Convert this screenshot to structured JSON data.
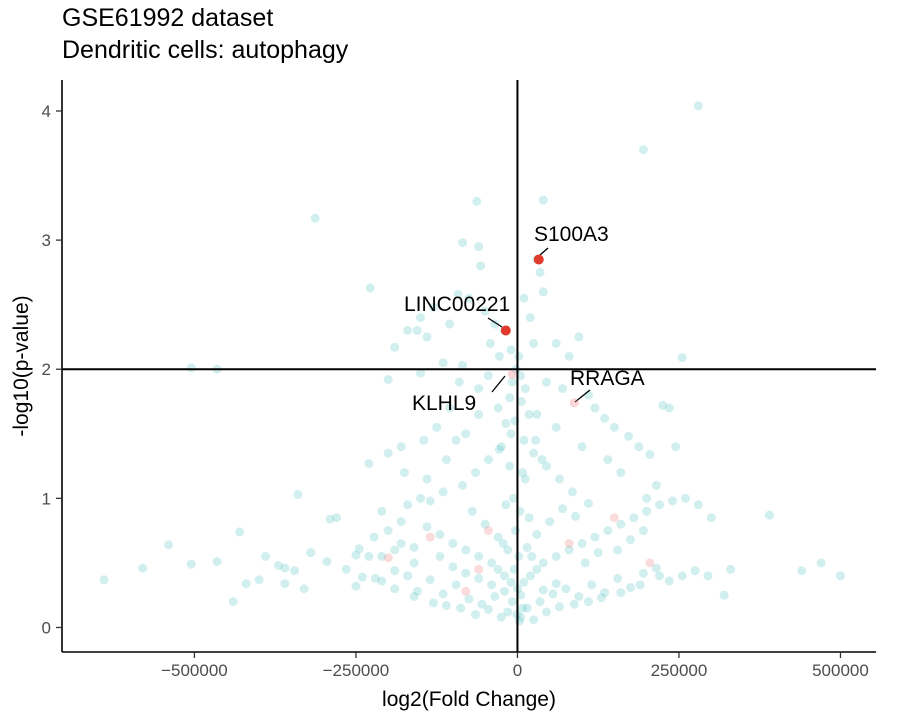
{
  "chart_data": {
    "type": "scatter",
    "title": "GSE61992 dataset",
    "subtitle": "Dendritic cells: autophagy",
    "xlabel": "log2(Fold Change)",
    "ylabel": "-log10(p-value)",
    "xlim": [
      -705000,
      555000
    ],
    "ylim": [
      -0.19,
      4.24
    ],
    "xticks": [
      -500000,
      -250000,
      0,
      250000,
      500000
    ],
    "xtick_labels": [
      "−500000",
      "−250000",
      "0",
      "250000",
      "500000"
    ],
    "yticks": [
      0,
      1,
      2,
      3,
      4
    ],
    "ytick_labels": [
      "0",
      "1",
      "2",
      "3",
      "4"
    ],
    "grid": false,
    "reference_lines": {
      "vertical_x": 0,
      "horizontal_y": 2
    },
    "colors": {
      "background": "#4dc0c0",
      "highlight": "#e03b2c",
      "faded_highlight": "#f08a8a"
    },
    "background_points": [
      [
        280000,
        4.04
      ],
      [
        195000,
        3.7
      ],
      [
        -313000,
        3.17
      ],
      [
        -63000,
        3.3
      ],
      [
        -85000,
        2.98
      ],
      [
        -60000,
        2.95
      ],
      [
        -57000,
        2.8
      ],
      [
        -228000,
        2.63
      ],
      [
        -92000,
        2.58
      ],
      [
        -75000,
        2.55
      ],
      [
        -130000,
        2.48
      ],
      [
        -150000,
        2.4
      ],
      [
        -170000,
        2.3
      ],
      [
        -155000,
        2.3
      ],
      [
        -190000,
        2.17
      ],
      [
        -140000,
        2.25
      ],
      [
        -105000,
        2.35
      ],
      [
        -50000,
        2.45
      ],
      [
        -35000,
        2.35
      ],
      [
        -42000,
        2.2
      ],
      [
        -28000,
        2.1
      ],
      [
        -20000,
        2.3
      ],
      [
        -10000,
        2.15
      ],
      [
        10000,
        2.55
      ],
      [
        20000,
        2.4
      ],
      [
        25000,
        2.2
      ],
      [
        40000,
        2.6
      ],
      [
        60000,
        2.2
      ],
      [
        80000,
        2.1
      ],
      [
        95000,
        2.25
      ],
      [
        -505000,
        2.01
      ],
      [
        -465000,
        2.0
      ],
      [
        -115000,
        2.05
      ],
      [
        -85000,
        2.03
      ],
      [
        255000,
        2.09
      ],
      [
        40000,
        3.31
      ],
      [
        35000,
        2.75
      ],
      [
        30000,
        2.85
      ],
      [
        -150000,
        1.97
      ],
      [
        -90000,
        1.9
      ],
      [
        -60000,
        1.85
      ],
      [
        -45000,
        1.95
      ],
      [
        -200000,
        1.92
      ],
      [
        45000,
        1.9
      ],
      [
        70000,
        1.85
      ],
      [
        110000,
        1.8
      ],
      [
        120000,
        1.7
      ],
      [
        135000,
        1.62
      ],
      [
        150000,
        1.55
      ],
      [
        172000,
        1.48
      ],
      [
        188000,
        1.4
      ],
      [
        205000,
        1.34
      ],
      [
        245000,
        1.4
      ],
      [
        225000,
        1.72
      ],
      [
        235000,
        1.7
      ],
      [
        -105000,
        1.7
      ],
      [
        -125000,
        1.55
      ],
      [
        -145000,
        1.45
      ],
      [
        -180000,
        1.4
      ],
      [
        -200000,
        1.35
      ],
      [
        -230000,
        1.27
      ],
      [
        -175000,
        1.2
      ],
      [
        -140000,
        1.15
      ],
      [
        -115000,
        1.05
      ],
      [
        -135000,
        0.98
      ],
      [
        -340000,
        1.03
      ],
      [
        -280000,
        0.85
      ],
      [
        -290000,
        0.84
      ],
      [
        -210000,
        0.9
      ],
      [
        -180000,
        0.82
      ],
      [
        -140000,
        0.78
      ],
      [
        -120000,
        0.72
      ],
      [
        -100000,
        0.65
      ],
      [
        -80000,
        0.6
      ],
      [
        -60000,
        0.55
      ],
      [
        -40000,
        0.5
      ],
      [
        -30000,
        0.45
      ],
      [
        -20000,
        0.4
      ],
      [
        -10000,
        0.35
      ],
      [
        0,
        0.3
      ],
      [
        10000,
        0.35
      ],
      [
        20000,
        0.4
      ],
      [
        30000,
        0.45
      ],
      [
        40000,
        0.5
      ],
      [
        60000,
        0.55
      ],
      [
        80000,
        0.6
      ],
      [
        100000,
        0.65
      ],
      [
        120000,
        0.7
      ],
      [
        140000,
        0.75
      ],
      [
        160000,
        0.8
      ],
      [
        180000,
        0.85
      ],
      [
        200000,
        0.9
      ],
      [
        220000,
        0.95
      ],
      [
        240000,
        0.98
      ],
      [
        260000,
        1.0
      ],
      [
        280000,
        0.95
      ],
      [
        300000,
        0.85
      ],
      [
        390000,
        0.87
      ],
      [
        -640000,
        0.37
      ],
      [
        -580000,
        0.46
      ],
      [
        -540000,
        0.64
      ],
      [
        -505000,
        0.49
      ],
      [
        -465000,
        0.51
      ],
      [
        -430000,
        0.74
      ],
      [
        -440000,
        0.2
      ],
      [
        -390000,
        0.55
      ],
      [
        -370000,
        0.48
      ],
      [
        -360000,
        0.46
      ],
      [
        -345000,
        0.44
      ],
      [
        -320000,
        0.58
      ],
      [
        -295000,
        0.51
      ],
      [
        -250000,
        0.56
      ],
      [
        -240000,
        0.39
      ],
      [
        -250000,
        0.32
      ],
      [
        -210000,
        0.36
      ],
      [
        -190000,
        0.44
      ],
      [
        -170000,
        0.4
      ],
      [
        -155000,
        0.28
      ],
      [
        -135000,
        0.37
      ],
      [
        -115000,
        0.26
      ],
      [
        -95000,
        0.33
      ],
      [
        -75000,
        0.22
      ],
      [
        -55000,
        0.18
      ],
      [
        -35000,
        0.24
      ],
      [
        -15000,
        0.12
      ],
      [
        5000,
        0.08
      ],
      [
        15000,
        0.15
      ],
      [
        35000,
        0.2
      ],
      [
        55000,
        0.26
      ],
      [
        75000,
        0.3
      ],
      [
        95000,
        0.24
      ],
      [
        115000,
        0.33
      ],
      [
        135000,
        0.27
      ],
      [
        155000,
        0.38
      ],
      [
        175000,
        0.31
      ],
      [
        195000,
        0.42
      ],
      [
        215000,
        0.46
      ],
      [
        235000,
        0.36
      ],
      [
        255000,
        0.4
      ],
      [
        275000,
        0.44
      ],
      [
        295000,
        0.4
      ],
      [
        330000,
        0.45
      ],
      [
        440000,
        0.44
      ],
      [
        470000,
        0.5
      ],
      [
        500000,
        0.4
      ],
      [
        -400000,
        0.37
      ],
      [
        -420000,
        0.34
      ],
      [
        -360000,
        0.34
      ],
      [
        -230000,
        0.55
      ],
      [
        -265000,
        0.45
      ],
      [
        -245000,
        0.61
      ],
      [
        -222000,
        0.7
      ],
      [
        -210000,
        0.55
      ],
      [
        -190000,
        0.6
      ],
      [
        -160000,
        0.5
      ],
      [
        -85000,
        1.1
      ],
      [
        -65000,
        1.2
      ],
      [
        -45000,
        1.3
      ],
      [
        -25000,
        1.4
      ],
      [
        -10000,
        1.5
      ],
      [
        10000,
        1.45
      ],
      [
        25000,
        1.35
      ],
      [
        45000,
        1.25
      ],
      [
        65000,
        1.15
      ],
      [
        85000,
        1.05
      ],
      [
        -70000,
        0.9
      ],
      [
        -50000,
        0.8
      ],
      [
        -30000,
        0.7
      ],
      [
        -15000,
        0.6
      ],
      [
        15000,
        0.62
      ],
      [
        30000,
        0.72
      ],
      [
        50000,
        0.82
      ],
      [
        70000,
        0.92
      ],
      [
        90000,
        0.86
      ],
      [
        110000,
        0.96
      ],
      [
        -8000,
        1.9
      ],
      [
        6000,
        1.75
      ],
      [
        -4000,
        1.6
      ],
      [
        8000,
        1.2
      ],
      [
        -6000,
        1.0
      ],
      [
        4000,
        0.9
      ],
      [
        -3000,
        0.75
      ],
      [
        2000,
        0.55
      ],
      [
        -1000,
        0.1
      ],
      [
        3000,
        0.05
      ],
      [
        -25000,
        0.08
      ],
      [
        25000,
        0.06
      ],
      [
        -45000,
        0.14
      ],
      [
        45000,
        0.12
      ],
      [
        -65000,
        0.1
      ],
      [
        65000,
        0.16
      ],
      [
        -88000,
        0.15
      ],
      [
        88000,
        0.18
      ],
      [
        -110000,
        0.17
      ],
      [
        110000,
        0.2
      ],
      [
        -130000,
        0.19
      ],
      [
        130000,
        0.23
      ],
      [
        -160000,
        0.24
      ],
      [
        160000,
        0.27
      ],
      [
        -190000,
        0.3
      ],
      [
        190000,
        0.33
      ],
      [
        -220000,
        0.38
      ],
      [
        220000,
        0.4
      ],
      [
        -330000,
        0.3
      ],
      [
        320000,
        0.25
      ],
      [
        200000,
        1.0
      ],
      [
        215000,
        1.1
      ],
      [
        160000,
        1.2
      ],
      [
        140000,
        1.3
      ],
      [
        100000,
        1.4
      ],
      [
        60000,
        1.55
      ],
      [
        30000,
        1.65
      ],
      [
        -30000,
        1.7
      ],
      [
        -60000,
        1.65
      ],
      [
        -80000,
        1.5
      ],
      [
        -95000,
        1.45
      ],
      [
        -110000,
        1.3
      ],
      [
        -150000,
        1.0
      ],
      [
        -170000,
        0.95
      ],
      [
        -200000,
        0.75
      ],
      [
        -12000,
        1.25
      ],
      [
        12000,
        1.15
      ],
      [
        -18000,
        0.95
      ],
      [
        18000,
        0.85
      ],
      [
        -22000,
        0.65
      ],
      [
        22000,
        0.55
      ],
      [
        -5000,
        0.45
      ],
      [
        5000,
        0.25
      ],
      [
        -8000,
        0.2
      ],
      [
        8000,
        0.15
      ],
      [
        155000,
        0.6
      ],
      [
        175000,
        0.68
      ],
      [
        195000,
        0.75
      ],
      [
        125000,
        0.58
      ],
      [
        105000,
        0.5
      ],
      [
        -180000,
        0.65
      ],
      [
        -160000,
        0.62
      ],
      [
        -120000,
        0.55
      ],
      [
        -100000,
        0.47
      ],
      [
        -80000,
        0.42
      ],
      [
        -60000,
        0.38
      ],
      [
        -40000,
        0.33
      ],
      [
        -20000,
        0.28
      ],
      [
        40000,
        0.29
      ],
      [
        60000,
        0.34
      ],
      [
        2000,
        2.1
      ],
      [
        -2000,
        2.0
      ],
      [
        5000,
        1.95
      ],
      [
        12000,
        1.85
      ],
      [
        -12000,
        1.78
      ],
      [
        18000,
        1.65
      ],
      [
        -18000,
        1.58
      ],
      [
        28000,
        1.45
      ],
      [
        -28000,
        1.38
      ],
      [
        38000,
        1.3
      ]
    ],
    "highlighted_points": [
      {
        "label": "S100A3",
        "x": 33000,
        "y": 2.85,
        "emphasis": "strong"
      },
      {
        "label": "LINC00221",
        "x": -18000,
        "y": 2.3,
        "emphasis": "strong"
      },
      {
        "label": "RRAGA",
        "x": 88000,
        "y": 1.74,
        "emphasis": "faded"
      },
      {
        "label": "KLHL9",
        "x": -8000,
        "y": 1.96,
        "emphasis": "faded"
      }
    ],
    "faded_points": [
      [
        -200000,
        0.54
      ],
      [
        -135000,
        0.7
      ],
      [
        205000,
        0.5
      ],
      [
        -45000,
        0.75
      ],
      [
        80000,
        0.65
      ],
      [
        -60000,
        0.45
      ],
      [
        150000,
        0.85
      ],
      [
        -80000,
        0.28
      ]
    ]
  }
}
